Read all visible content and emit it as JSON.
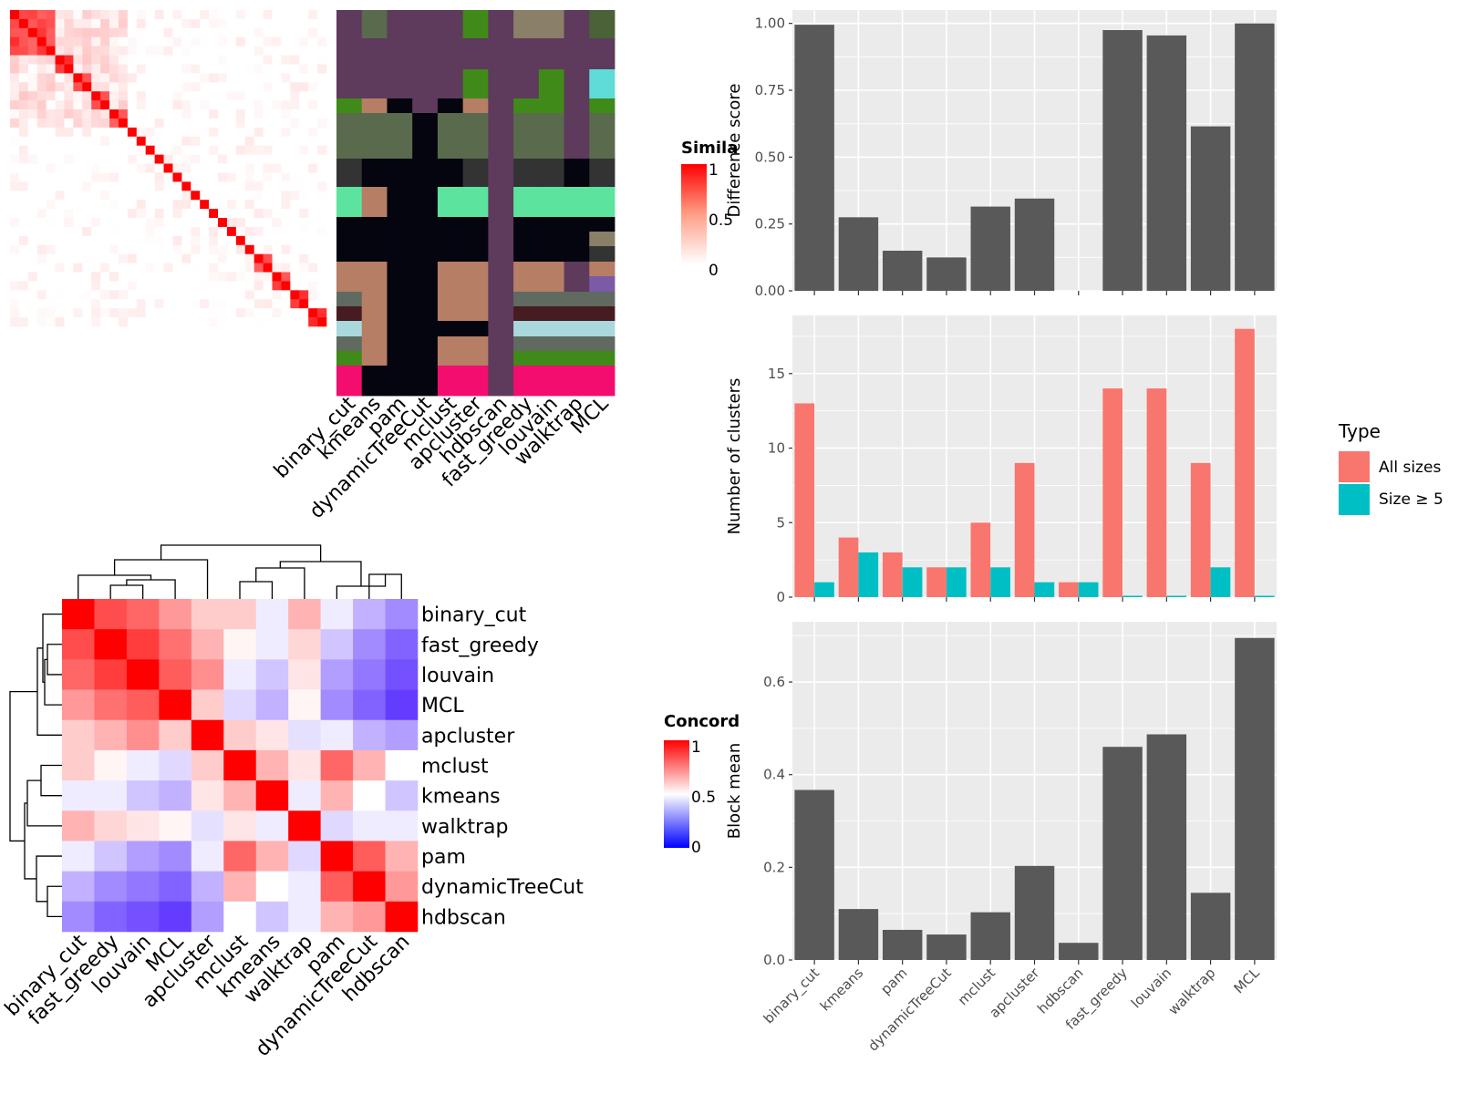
{
  "methods": [
    "binary_cut",
    "kmeans",
    "pam",
    "dynamicTreeCut",
    "mclust",
    "apcluster",
    "hdbscan",
    "fast_greedy",
    "louvain",
    "walktrap",
    "MCL"
  ],
  "similarity_legend": {
    "title": "Simila",
    "ticks": [
      "1",
      "0.5",
      "0"
    ]
  },
  "concordance_legend": {
    "title": "Concord",
    "ticks": [
      "1",
      "0.5",
      "0"
    ]
  },
  "colors": {
    "bar": "#595959",
    "all_sizes": "#f8766d",
    "size5": "#00bfc4",
    "panel_bg": "#ebebeb",
    "grid": "#ffffff",
    "heat_high": "#ff0000",
    "heat_low": "#0000ff"
  },
  "chart_data": [
    {
      "type": "heatmap",
      "name": "similarity-heatmap",
      "n": 35,
      "blocks": [
        [
          0,
          5
        ],
        [
          5,
          7
        ],
        [
          7,
          9
        ],
        [
          9,
          11
        ],
        [
          11,
          13
        ],
        [
          13,
          14
        ],
        [
          14,
          15
        ],
        [
          15,
          16
        ],
        [
          16,
          17
        ],
        [
          17,
          18
        ],
        [
          18,
          19
        ],
        [
          19,
          20
        ],
        [
          20,
          21
        ],
        [
          21,
          22
        ],
        [
          22,
          23
        ],
        [
          23,
          24
        ],
        [
          24,
          25
        ],
        [
          25,
          26
        ],
        [
          26,
          27
        ],
        [
          27,
          29
        ],
        [
          29,
          31
        ],
        [
          31,
          33
        ],
        [
          33,
          35
        ]
      ],
      "value_range": [
        0,
        1
      ]
    },
    {
      "type": "heatmap",
      "name": "cluster-membership",
      "columns": [
        "binary_cut",
        "kmeans",
        "pam",
        "dynamicTreeCut",
        "mclust",
        "apcluster",
        "hdbscan",
        "fast_greedy",
        "louvain",
        "walktrap",
        "MCL"
      ]
    },
    {
      "type": "bar",
      "categories": [
        "binary_cut",
        "kmeans",
        "pam",
        "dynamicTreeCut",
        "mclust",
        "apcluster",
        "hdbscan",
        "fast_greedy",
        "louvain",
        "walktrap",
        "MCL"
      ],
      "values": [
        0.995,
        0.275,
        0.15,
        0.125,
        0.315,
        0.345,
        0,
        0.975,
        0.955,
        0.615,
        1.0
      ],
      "ylabel": "Difference score",
      "ylim": [
        0,
        1.05
      ],
      "yticks": [
        "0.00",
        "0.25",
        "0.50",
        "0.75",
        "1.00"
      ]
    },
    {
      "type": "bar",
      "categories": [
        "binary_cut",
        "kmeans",
        "pam",
        "dynamicTreeCut",
        "mclust",
        "apcluster",
        "hdbscan",
        "fast_greedy",
        "louvain",
        "walktrap",
        "MCL"
      ],
      "series": [
        {
          "name": "All sizes",
          "values": [
            13,
            4,
            3,
            2,
            5,
            9,
            1,
            14,
            14,
            9,
            18
          ]
        },
        {
          "name": "Size ≥ 5",
          "values": [
            1,
            3,
            2,
            2,
            2,
            1,
            1,
            0,
            0,
            2,
            0
          ]
        }
      ],
      "ylabel": "Number of clusters",
      "ylim": [
        0,
        18.9
      ],
      "yticks": [
        "0",
        "5",
        "10",
        "15"
      ],
      "legend_title": "Type",
      "legend_position": "right"
    },
    {
      "type": "bar",
      "categories": [
        "binary_cut",
        "kmeans",
        "pam",
        "dynamicTreeCut",
        "mclust",
        "apcluster",
        "hdbscan",
        "fast_greedy",
        "louvain",
        "walktrap",
        "MCL"
      ],
      "values": [
        0.367,
        0.11,
        0.065,
        0.055,
        0.103,
        0.203,
        0.037,
        0.46,
        0.487,
        0.145,
        0.695
      ],
      "ylabel": "Block mean",
      "ylim": [
        0,
        0.73
      ],
      "yticks": [
        "0.0",
        "0.2",
        "0.4",
        "0.6"
      ]
    },
    {
      "type": "heatmap",
      "name": "concordance-heatmap",
      "labels": [
        "binary_cut",
        "fast_greedy",
        "louvain",
        "MCL",
        "apcluster",
        "mclust",
        "kmeans",
        "walktrap",
        "pam",
        "dynamicTreeCut",
        "hdbscan"
      ],
      "matrix": [
        [
          1.0,
          0.85,
          0.8,
          0.7,
          0.6,
          0.6,
          0.45,
          0.65,
          0.45,
          0.3,
          0.2
        ],
        [
          0.85,
          1.0,
          0.88,
          0.78,
          0.65,
          0.52,
          0.45,
          0.58,
          0.35,
          0.2,
          0.1
        ],
        [
          0.8,
          0.88,
          1.0,
          0.82,
          0.72,
          0.45,
          0.35,
          0.55,
          0.25,
          0.15,
          0.05
        ],
        [
          0.7,
          0.78,
          0.82,
          1.0,
          0.6,
          0.4,
          0.3,
          0.52,
          0.2,
          0.1,
          0.0
        ],
        [
          0.6,
          0.65,
          0.72,
          0.6,
          1.0,
          0.6,
          0.55,
          0.42,
          0.45,
          0.3,
          0.25
        ],
        [
          0.6,
          0.52,
          0.45,
          0.4,
          0.6,
          1.0,
          0.65,
          0.55,
          0.8,
          0.65,
          0.5
        ],
        [
          0.45,
          0.45,
          0.35,
          0.3,
          0.55,
          0.65,
          1.0,
          0.45,
          0.65,
          0.5,
          0.35
        ],
        [
          0.65,
          0.58,
          0.55,
          0.52,
          0.42,
          0.55,
          0.45,
          1.0,
          0.4,
          0.45,
          0.45
        ],
        [
          0.45,
          0.35,
          0.25,
          0.2,
          0.45,
          0.8,
          0.65,
          0.4,
          1.0,
          0.82,
          0.65
        ],
        [
          0.3,
          0.2,
          0.15,
          0.1,
          0.3,
          0.65,
          0.5,
          0.45,
          0.82,
          1.0,
          0.7
        ],
        [
          0.2,
          0.1,
          0.05,
          0.0,
          0.25,
          0.5,
          0.35,
          0.45,
          0.65,
          0.7,
          1.0
        ]
      ],
      "value_range": [
        0,
        1
      ]
    }
  ],
  "legend": {
    "title": "Type",
    "items": [
      "All sizes",
      "Size ≥ 5"
    ]
  }
}
